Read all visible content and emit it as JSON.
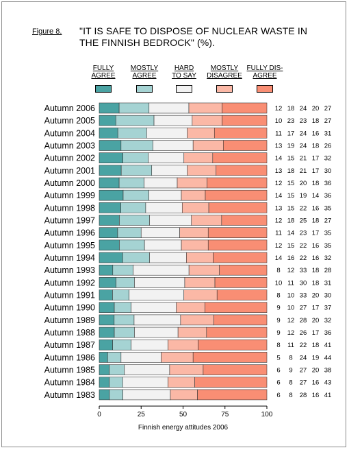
{
  "figure_label": "Figure 8.",
  "title": "\"IT IS SAFE TO DISPOSE OF NUCLEAR WASTE IN THE FINNISH BEDROCK\" (%).",
  "chart_data": {
    "type": "bar",
    "stacked": true,
    "orientation": "horizontal",
    "categories": [
      "Autumn 2006",
      "Autumn 2005",
      "Autumn 2004",
      "Autumn 2003",
      "Autumn 2002",
      "Autumn 2001",
      "Autumn 2000",
      "Autumn 1999",
      "Autumn 1998",
      "Autumn 1997",
      "Autumn 1996",
      "Autumn 1995",
      "Autumn 1994",
      "Autumn 1993",
      "Autumn 1992",
      "Autumn 1991",
      "Autumn 1990",
      "Autumn 1989",
      "Autumn 1988",
      "Autumn 1987",
      "Autumn 1986",
      "Autumn 1985",
      "Autumn 1984",
      "Autumn 1983"
    ],
    "series": [
      {
        "name": "FULLY AGREE",
        "color": "#4aa3a3",
        "values": [
          12,
          10,
          11,
          13,
          14,
          13,
          12,
          14,
          13,
          12,
          11,
          12,
          14,
          8,
          10,
          8,
          9,
          9,
          9,
          8,
          5,
          6,
          6,
          6
        ]
      },
      {
        "name": "MOSTLY AGREE",
        "color": "#a5d3d3",
        "values": [
          18,
          23,
          17,
          19,
          15,
          18,
          15,
          15,
          15,
          18,
          14,
          15,
          16,
          12,
          11,
          10,
          10,
          12,
          12,
          11,
          8,
          9,
          8,
          8
        ]
      },
      {
        "name": "HARD TO SAY",
        "color": "#f2f2f2",
        "values": [
          24,
          23,
          24,
          24,
          21,
          21,
          20,
          19,
          22,
          25,
          23,
          22,
          22,
          33,
          30,
          33,
          27,
          28,
          26,
          22,
          24,
          27,
          27,
          28
        ]
      },
      {
        "name": "MOSTLY DISAGREE",
        "color": "#fbb8a6",
        "values": [
          20,
          18,
          16,
          18,
          17,
          17,
          18,
          14,
          16,
          18,
          17,
          16,
          16,
          18,
          18,
          20,
          17,
          20,
          17,
          18,
          19,
          20,
          16,
          16
        ]
      },
      {
        "name": "FULLY DISAGREE",
        "color": "#f98e74",
        "values": [
          27,
          27,
          31,
          26,
          32,
          30,
          36,
          36,
          35,
          27,
          35,
          35,
          32,
          28,
          31,
          30,
          37,
          32,
          36,
          41,
          44,
          38,
          43,
          41
        ]
      }
    ],
    "xlim": [
      0,
      100
    ],
    "xticks": [
      0,
      25,
      50,
      75,
      100
    ],
    "xlabel": "Finnish energy attitudes 2006",
    "legend_position": "top",
    "legend_labels": [
      [
        "FULLY",
        "AGREE"
      ],
      [
        "MOSTLY",
        "AGREE"
      ],
      [
        "HARD",
        "TO SAY"
      ],
      [
        "MOSTLY",
        "DISAGREE"
      ],
      [
        "FULLY DIS-",
        "AGREE"
      ]
    ],
    "value_labels_shown": true
  }
}
